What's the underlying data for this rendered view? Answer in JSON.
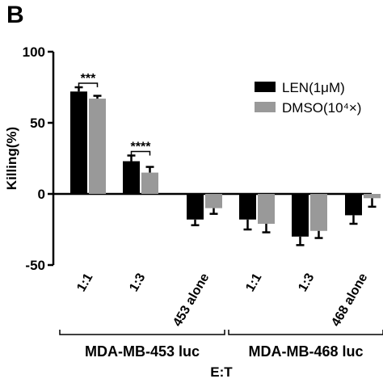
{
  "panel_label": "B",
  "chart_data": {
    "type": "bar",
    "categories": [
      "1:1",
      "1:3",
      "453 alone",
      "1:1",
      "1:3",
      "468 alone"
    ],
    "series": [
      {
        "name": "LEN(1μM)",
        "color": "#000000",
        "values": [
          72,
          23,
          -18,
          -18,
          -30,
          -15
        ],
        "errors": [
          3,
          4,
          4,
          7,
          6,
          6
        ]
      },
      {
        "name": "DMSO(10⁴×)",
        "color": "#999999",
        "values": [
          67,
          15,
          -10,
          -21,
          -26,
          -3
        ],
        "errors": [
          2,
          4,
          4,
          6,
          5,
          6
        ]
      }
    ],
    "ylabel": "Killing(%)",
    "xlabel": "E:T",
    "ylim": [
      -50,
      100
    ],
    "yticks": [
      "100",
      "50",
      "0",
      "-50"
    ],
    "groups": [
      {
        "label": "MDA-MB-453 luc",
        "categories": [
          0,
          1,
          2
        ]
      },
      {
        "label": "MDA-MB-468 luc",
        "categories": [
          3,
          4,
          5
        ]
      }
    ],
    "significance": [
      {
        "category": 0,
        "label": "***"
      },
      {
        "category": 1,
        "label": "****"
      }
    ],
    "legend_position": "top-right",
    "grid": false
  }
}
